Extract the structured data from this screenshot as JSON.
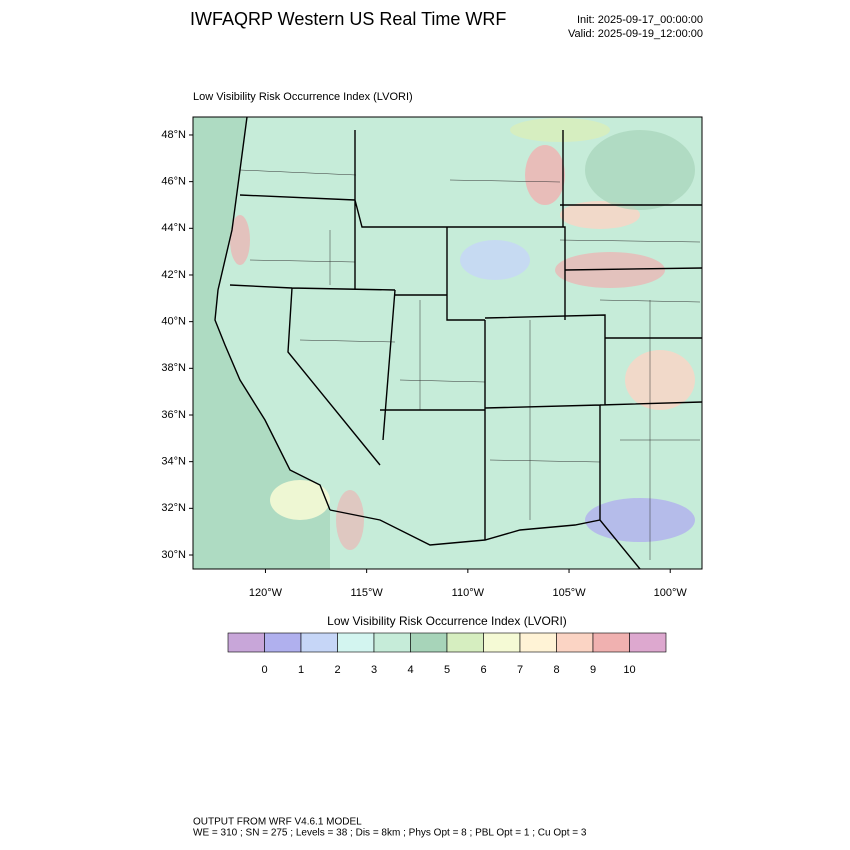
{
  "header": {
    "title": "IWFAQRP Western US Real Time WRF",
    "init": "Init: 2025-09-17_00:00:00",
    "valid": "Valid: 2025-09-19_12:00:00"
  },
  "map": {
    "subtitle": "Low Visibility Risk Occurrence Index   (LVORI)",
    "lat_ticks": [
      {
        "value": 30,
        "label": "30°N"
      },
      {
        "value": 32,
        "label": "32°N"
      },
      {
        "value": 34,
        "label": "34°N"
      },
      {
        "value": 36,
        "label": "36°N"
      },
      {
        "value": 38,
        "label": "38°N"
      },
      {
        "value": 40,
        "label": "40°N"
      },
      {
        "value": 42,
        "label": "42°N"
      },
      {
        "value": 44,
        "label": "44°N"
      },
      {
        "value": 46,
        "label": "46°N"
      },
      {
        "value": 48,
        "label": "48°N"
      }
    ],
    "lon_ticks": [
      {
        "value": -120,
        "label": "120°W"
      },
      {
        "value": -115,
        "label": "115°W"
      },
      {
        "value": -110,
        "label": "110°W"
      },
      {
        "value": -105,
        "label": "105°W"
      },
      {
        "value": -100,
        "label": "100°W"
      }
    ]
  },
  "colorbar": {
    "title": "Low Visibility Risk Occurrence Index  (LVORI)",
    "colors": [
      "#c8a6d9",
      "#b0b0ee",
      "#c6d6f7",
      "#d3f5f0",
      "#c6ecd9",
      "#a7d4b9",
      "#d6eec0",
      "#f5fad5",
      "#fff3d6",
      "#fbd4c4",
      "#f0b1b0",
      "#dda8cf"
    ],
    "labels": [
      0,
      1,
      2,
      3,
      4,
      5,
      6,
      7,
      8,
      9,
      10
    ]
  },
  "footer": {
    "line1": "OUTPUT FROM WRF V4.6.1 MODEL",
    "line2": "WE = 310 ; SN = 275 ; Levels = 38 ; Dis = 8km ; Phys Opt = 8 ; PBL Opt = 1 ; Cu Opt = 3"
  }
}
